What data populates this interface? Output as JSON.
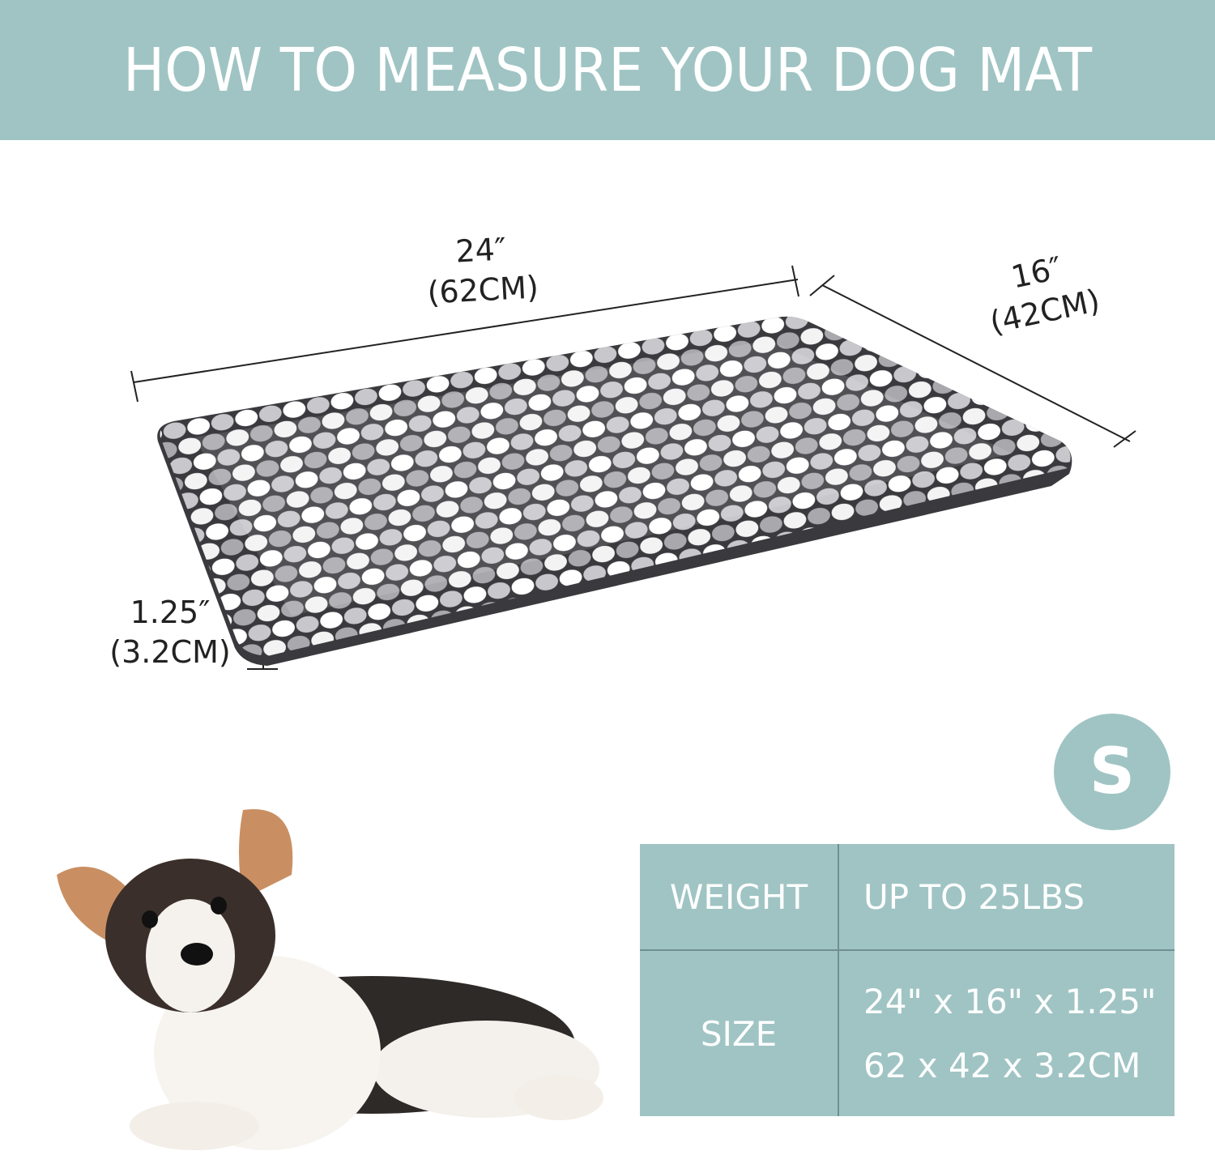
{
  "header": {
    "title": "HOW TO MEASURE YOUR DOG MAT"
  },
  "dimensions": {
    "length_in": "24″",
    "length_cm": "(62CM)",
    "width_in": "16″",
    "width_cm": "(42CM)",
    "height_in": "1.25″",
    "height_cm": "(3.2CM)"
  },
  "size_badge": "S",
  "spec_table": {
    "rows": [
      {
        "label": "WEIGHT",
        "values": [
          "UP TO 25LBS"
        ]
      },
      {
        "label": "SIZE",
        "values": [
          "24\" x 16\" x 1.25\"",
          "62 x 42 x 3.2CM"
        ]
      }
    ]
  },
  "colors": {
    "accent": "#a0c4c4",
    "text_on_accent": "#ffffff",
    "dimension_text": "#222222"
  }
}
